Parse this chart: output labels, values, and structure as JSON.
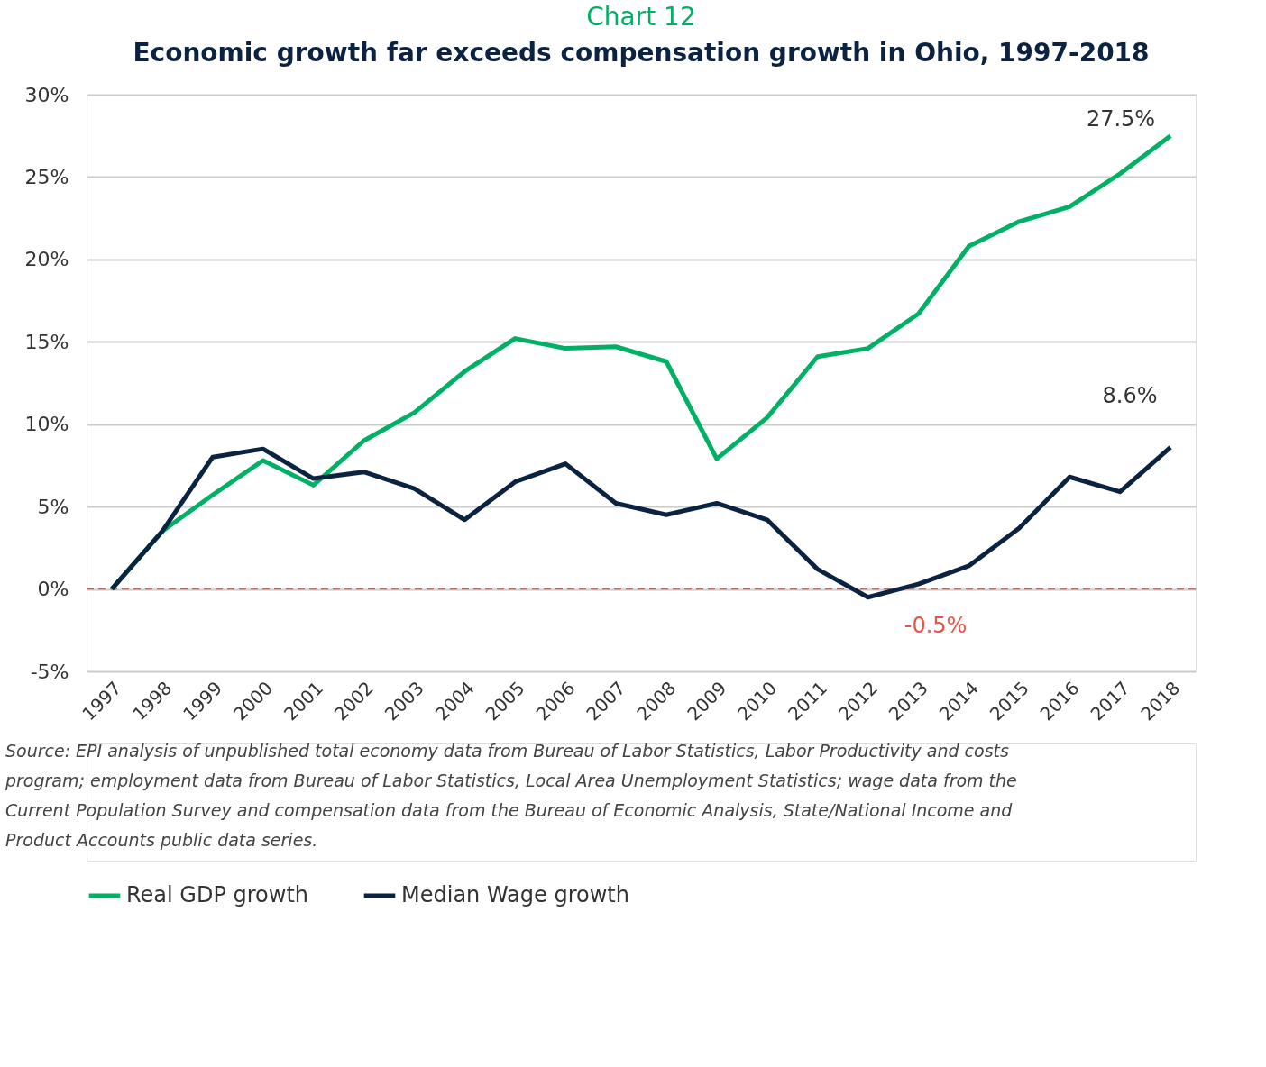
{
  "chart_data": {
    "type": "line",
    "title": "Chart 12",
    "subtitle": "Economic growth far exceeds compensation growth in Ohio, 1997-2018",
    "categories": [
      "1997",
      "1998",
      "1999",
      "2000",
      "2001",
      "2002",
      "2003",
      "2004",
      "2005",
      "2006",
      "2007",
      "2008",
      "2009",
      "2010",
      "2011",
      "2012",
      "2013",
      "2014",
      "2015",
      "2016",
      "2017",
      "2018"
    ],
    "series": [
      {
        "name": "Real GDP growth",
        "color": "#00b165",
        "values": [
          0,
          3.5,
          5.7,
          7.8,
          6.3,
          9.0,
          10.7,
          13.2,
          15.2,
          14.6,
          14.7,
          13.8,
          7.9,
          10.4,
          14.1,
          14.6,
          16.7,
          20.8,
          22.3,
          23.2,
          25.2,
          27.5
        ]
      },
      {
        "name": "Median Wage growth",
        "color": "#0b2340",
        "values": [
          0,
          3.5,
          8.0,
          8.5,
          6.7,
          7.1,
          6.1,
          4.2,
          6.5,
          7.6,
          5.2,
          4.5,
          5.2,
          4.2,
          1.2,
          -0.5,
          0.3,
          1.4,
          3.7,
          6.8,
          5.9,
          8.6
        ]
      }
    ],
    "ylim": [
      -5,
      30
    ],
    "yticks": [
      {
        "value": -5,
        "label": "-5%"
      },
      {
        "value": 0,
        "label": "0%"
      },
      {
        "value": 5,
        "label": "5%"
      },
      {
        "value": 10,
        "label": "10%"
      },
      {
        "value": 15,
        "label": "15%"
      },
      {
        "value": 20,
        "label": "20%"
      },
      {
        "value": 25,
        "label": "25%"
      },
      {
        "value": 30,
        "label": "30%"
      }
    ],
    "grid": "y",
    "legend": "bottom",
    "marker": "none",
    "line_style": "solid",
    "ref_lines": [
      {
        "axis": "y",
        "value": 0,
        "color": "#e8534a",
        "line_style": "dashed"
      }
    ],
    "annotations": [
      {
        "text": "27.5%",
        "x": "2018",
        "y": 27.5
      },
      {
        "text": "8.6%",
        "x": "2018",
        "y": 8.6
      },
      {
        "text": "-0.5%",
        "x": "2012",
        "y": -0.5
      },
      "Source: EPI analysis of unpublished total economy data from Bureau of Labor Statistics, Labor Productivity and costs program; employment data from Bureau of Labor Statistics, Local Area Unemployment Statistics; wage data from the Current Population Survey and compensation data from the Bureau of Economic Analysis, State/National Income and Product Accounts public data series."
    ]
  }
}
